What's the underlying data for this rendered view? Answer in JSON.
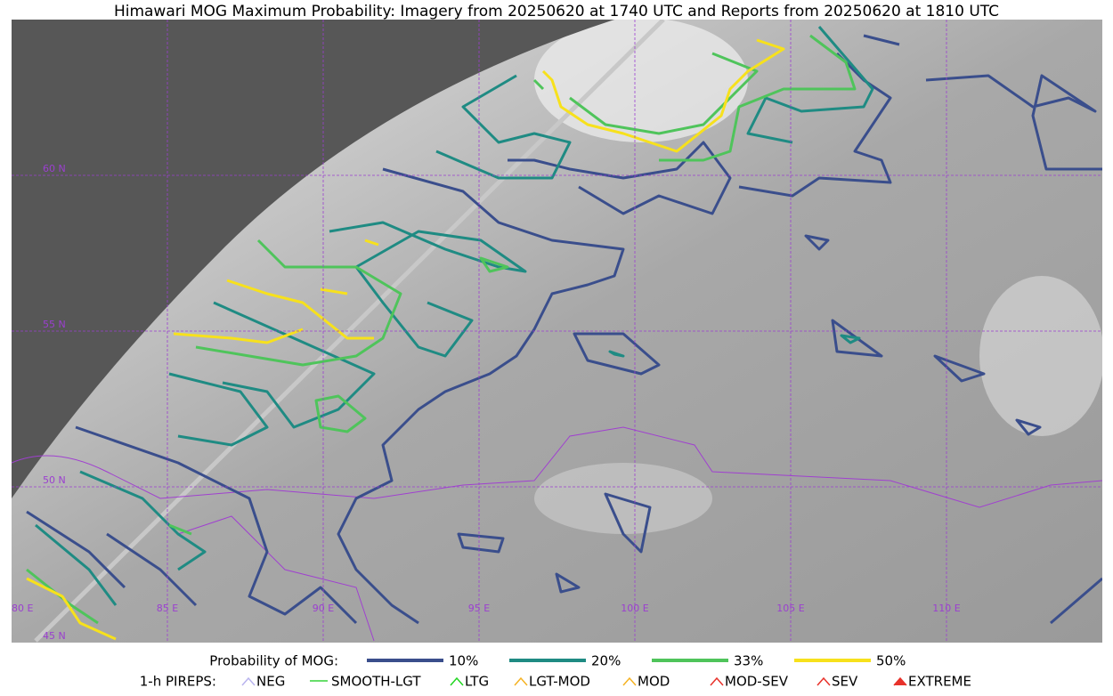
{
  "title": "Himawari MOG Maximum Probability: Imagery from 20250620 at 1740 UTC and Reports from 20250620 at 1810 UTC",
  "map": {
    "lat_labels": [
      "60 N",
      "55 N",
      "50 N",
      "45 N"
    ],
    "lon_labels": [
      "80 E",
      "85 E",
      "90 E",
      "95 E",
      "100 E",
      "105 E",
      "110 E"
    ]
  },
  "legend": {
    "title": "Probability of MOG:",
    "levels": [
      {
        "label": "10%",
        "color": "#3a4e8c"
      },
      {
        "label": "20%",
        "color": "#1f8b83"
      },
      {
        "label": "33%",
        "color": "#4fc45b"
      },
      {
        "label": "50%",
        "color": "#f7e11c"
      }
    ],
    "pireps_title": "1-h PIREPS:",
    "pireps": [
      {
        "label": "NEG",
        "color": "#b9b4ee"
      },
      {
        "label": "SMOOTH-LGT",
        "color": "#36d33a"
      },
      {
        "label": "LTG",
        "color": "#22d622"
      },
      {
        "label": "LGT-MOD",
        "color": "#f5b324"
      },
      {
        "label": "MOD",
        "color": "#f5b324"
      },
      {
        "label": "MOD-SEV",
        "color": "#e8322b"
      },
      {
        "label": "SEV",
        "color": "#e8322b"
      },
      {
        "label": "EXTREME",
        "color": "#e8322b"
      }
    ]
  }
}
